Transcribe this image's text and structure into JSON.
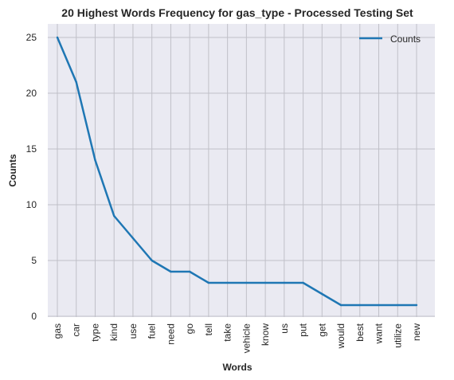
{
  "chart_data": {
    "type": "line",
    "title": "20 Highest Words Frequency for gas_type - Processed Testing Set",
    "xlabel": "Words",
    "ylabel": "Counts",
    "categories": [
      "gas",
      "car",
      "type",
      "kind",
      "use",
      "fuel",
      "need",
      "go",
      "tell",
      "take",
      "vehicle",
      "know",
      "us",
      "put",
      "get",
      "would",
      "best",
      "want",
      "utilize",
      "new"
    ],
    "series": [
      {
        "name": "Counts",
        "values": [
          25,
          21,
          14,
          9,
          7,
          5,
          4,
          4,
          3,
          3,
          3,
          3,
          3,
          3,
          2,
          1,
          1,
          1,
          1,
          1
        ]
      }
    ],
    "ylim": [
      0,
      25
    ],
    "yticks": [
      0,
      5,
      10,
      15,
      20,
      25
    ],
    "grid": true,
    "legend": "top-right",
    "colors": {
      "line": "#1f77b4",
      "background": "#eaeaf2",
      "grid": "#c0c0c8",
      "text": "#262626"
    }
  }
}
